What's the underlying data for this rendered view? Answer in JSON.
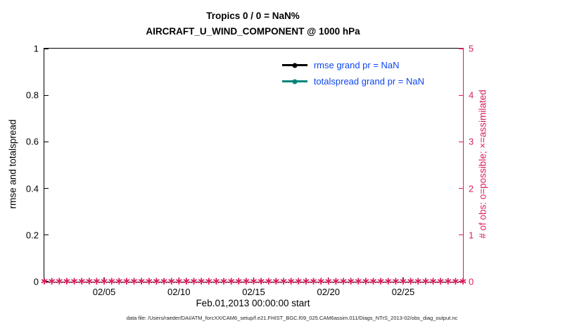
{
  "figure": {
    "title_line1": "Tropics 0 / 0 = NaN%",
    "title_line2": "AIRCRAFT_U_WIND_COMPONENT @ 1000 hPa",
    "x_label": "Feb.01,2013 00:00:00 start",
    "left_y_label": "rmse and totalspread",
    "right_y_label": "# of obs: o=possible; ×=assimilated",
    "footer": "data file: /Users/raeder/DAI/ATM_forcXX/CAM6_setup/f.e21.FHIST_BGC.f09_025.CAM6assim.011/Diags_NTrS_2013-02/obs_diag_output.nc"
  },
  "legend": {
    "text_color": "#0d46f0",
    "items": [
      {
        "label": "rmse grand pr = NaN",
        "color": "#000000"
      },
      {
        "label": "totalspread grand pr = NaN",
        "color": "#00857a"
      }
    ]
  },
  "colors": {
    "axis": "#000000",
    "right_axis": "#d81e5b",
    "obs_marker": "#d81e5b"
  },
  "chart_data": {
    "type": "line",
    "title": "Tropics 0 / 0 = NaN%",
    "subtitle": "AIRCRAFT_U_WIND_COMPONENT @ 1000 hPa",
    "x_start_label": "Feb.01,2013 00:00:00 start",
    "x_days_total": 28,
    "x_tick_days": [
      4,
      9,
      14,
      19,
      24
    ],
    "x_tick_labels": [
      "02/05",
      "02/10",
      "02/15",
      "02/20",
      "02/25"
    ],
    "left_axis": {
      "label": "rmse and totalspread",
      "ylim": [
        0,
        1
      ],
      "ticks": [
        0,
        0.2,
        0.4,
        0.6,
        0.8,
        1
      ],
      "tick_labels": [
        "0",
        "0.2",
        "0.4",
        "0.6",
        "0.8",
        "1"
      ]
    },
    "right_axis": {
      "label": "# of obs: o=possible; ×=assimilated",
      "ylim": [
        0,
        5
      ],
      "ticks": [
        0,
        1,
        2,
        3,
        4,
        5
      ],
      "tick_labels": [
        "0",
        "1",
        "2",
        "3",
        "4",
        "5"
      ]
    },
    "series": [
      {
        "name": "rmse",
        "legend": "rmse grand pr = NaN",
        "grand_mean": "NaN",
        "color": "#000000",
        "values": []
      },
      {
        "name": "totalspread",
        "legend": "totalspread grand pr = NaN",
        "grand_mean": "NaN",
        "color": "#00857a",
        "values": []
      }
    ],
    "obs_markers": {
      "y_value": 0,
      "count": 57,
      "marker": "∗",
      "color": "#d81e5b"
    }
  }
}
